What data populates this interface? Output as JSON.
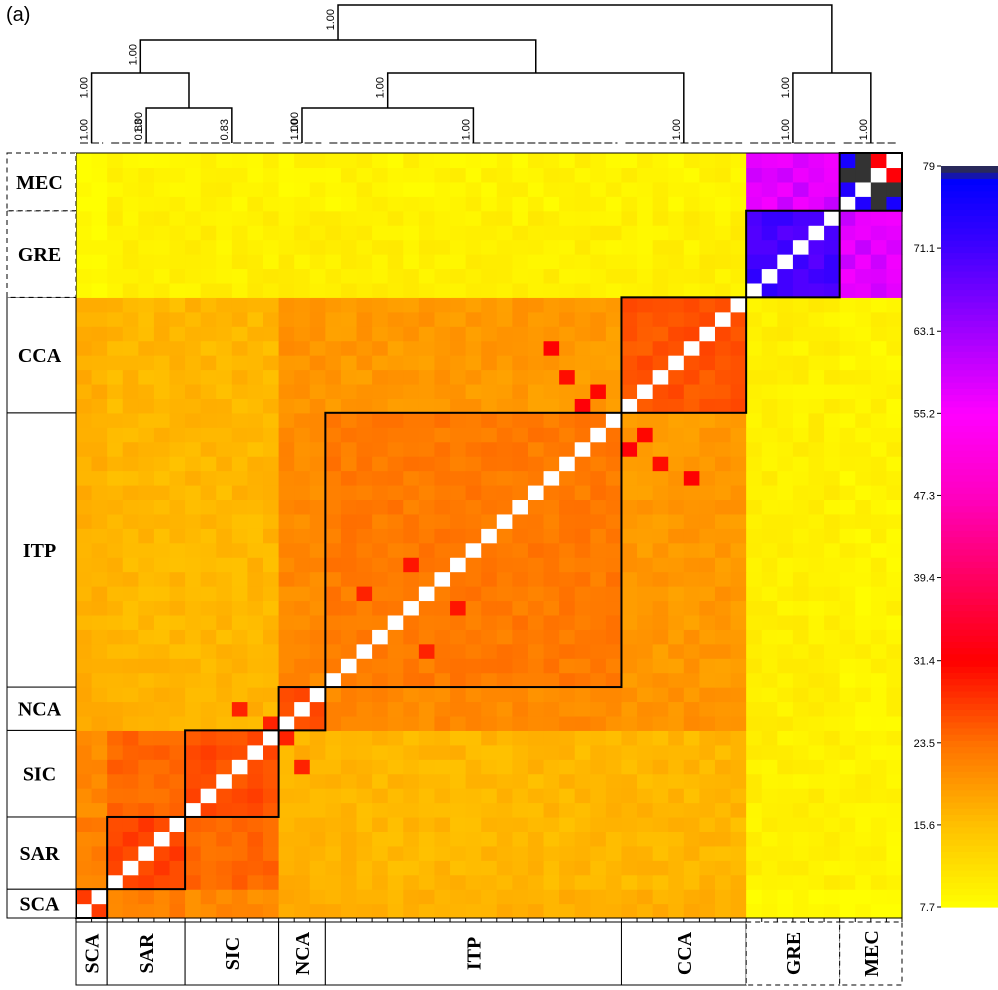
{
  "panel_label": "(a)",
  "chart_data": {
    "type": "heatmap",
    "groups": [
      {
        "name": "SCA",
        "size": 2,
        "border": "solid",
        "within": 28,
        "gre": 8.5,
        "mec": 8.0
      },
      {
        "name": "SAR",
        "size": 5,
        "border": "solid",
        "within": 27,
        "gre": 9.5,
        "mec": 9.0
      },
      {
        "name": "SIC",
        "size": 6,
        "border": "solid",
        "within": 26,
        "gre": 9.5,
        "mec": 9.0
      },
      {
        "name": "NCA",
        "size": 3,
        "border": "solid",
        "within": 26.5,
        "gre": 9.5,
        "mec": 9.0
      },
      {
        "name": "ITP",
        "size": 19,
        "border": "solid",
        "within": 22.5,
        "gre": 9.5,
        "mec": 9.0
      },
      {
        "name": "CCA",
        "size": 8,
        "border": "solid",
        "within": 25.5,
        "gre": 9.5,
        "mec": 9.0
      },
      {
        "name": "GRE",
        "size": 6,
        "border": "dashed",
        "within": 71,
        "gre": 71,
        "mec": 58
      },
      {
        "name": "MEC",
        "size": 4,
        "border": "dashed",
        "within": 74.5,
        "gre": 58,
        "mec": 74.5
      }
    ],
    "between_groups": {
      "SCA-SAR": 22,
      "SCA-SIC": 21,
      "SCA-NCA": 18,
      "SCA-ITP": 17,
      "SCA-CCA": 17.5,
      "SAR-SIC": 24,
      "SAR-NCA": 17,
      "SAR-ITP": 16.5,
      "SAR-CCA": 16.5,
      "SIC-NCA": 17,
      "SIC-ITP": 16.5,
      "SIC-CCA": 16.5,
      "NCA-ITP": 21,
      "NCA-CCA": 20,
      "ITP-CCA": 19.5
    },
    "hot_cells": [
      {
        "row": 35,
        "col": 32,
        "value": 32
      },
      {
        "row": 36,
        "col": 33,
        "value": 31
      },
      {
        "row": 37,
        "col": 31,
        "value": 30.5
      },
      {
        "row": 39,
        "col": 30,
        "value": 31.5
      },
      {
        "row": 51,
        "col": 52,
        "value": 32
      },
      {
        "row": 50,
        "col": 51,
        "value": 31
      },
      {
        "row": 24,
        "col": 21,
        "value": 30
      },
      {
        "row": 14,
        "col": 10,
        "value": 29
      },
      {
        "row": 22,
        "col": 18,
        "value": 29
      },
      {
        "row": 12,
        "col": 13,
        "value": 29
      }
    ],
    "dark_cells": [
      {
        "row": 51,
        "col": 49
      },
      {
        "row": 52,
        "col": 50
      },
      {
        "row": 51,
        "col": 50
      }
    ],
    "colorbar": {
      "min": 7.7,
      "max": 79,
      "ticks": [
        "7.7",
        "15.6",
        "23.5",
        "31.4",
        "39.4",
        "47.3",
        "55.2",
        "63.1",
        "71.1",
        "79"
      ],
      "tick_values": [
        7.7,
        15.6,
        23.5,
        31.4,
        39.4,
        47.3,
        55.2,
        63.1,
        71.1,
        79
      ],
      "colors": [
        {
          "v": 7.7,
          "c": "#ffff00"
        },
        {
          "v": 15.6,
          "c": "#ffc000"
        },
        {
          "v": 23.5,
          "c": "#ff7000"
        },
        {
          "v": 31.4,
          "c": "#ff0000"
        },
        {
          "v": 39.4,
          "c": "#ff0060"
        },
        {
          "v": 47.3,
          "c": "#ff00c0"
        },
        {
          "v": 55.2,
          "c": "#ff00ff"
        },
        {
          "v": 63.1,
          "c": "#a000ff"
        },
        {
          "v": 71.1,
          "c": "#4000ff"
        },
        {
          "v": 77.5,
          "c": "#0000ff"
        },
        {
          "v": 79,
          "c": "#333333"
        }
      ]
    },
    "dendrogram": {
      "nodes": [
        {
          "id": "n_sca",
          "label": "1.00",
          "members": [
            "SCA"
          ]
        },
        {
          "id": "n_sar",
          "label": "0.83",
          "members": [
            "SAR"
          ]
        },
        {
          "id": "n_sic",
          "label": "0.83",
          "members": [
            "SIC"
          ]
        },
        {
          "id": "n_nca",
          "label": "1.00",
          "members": [
            "NCA"
          ]
        },
        {
          "id": "n_itp",
          "label": "1.00",
          "members": [
            "ITP"
          ]
        },
        {
          "id": "n_cca",
          "label": "1.00",
          "members": [
            "CCA"
          ]
        },
        {
          "id": "n_gre",
          "label": "1.00",
          "members": [
            "GRE"
          ]
        },
        {
          "id": "n_mec",
          "label": "1.00",
          "members": [
            "MEC"
          ]
        },
        {
          "id": "n_sar_sic",
          "label": "1.00",
          "children": [
            "n_sar",
            "n_sic"
          ]
        },
        {
          "id": "n_sca_sar_sic",
          "label": "1.00",
          "children": [
            "n_sca",
            "n_sar_sic"
          ]
        },
        {
          "id": "n_nca_itp",
          "label": "1.00",
          "children": [
            "n_nca",
            "n_itp"
          ]
        },
        {
          "id": "n_nca_itp_cca",
          "label": "1.00",
          "children": [
            "n_nca_itp",
            "n_cca"
          ]
        },
        {
          "id": "n_south",
          "label": "1.00",
          "children": [
            "n_sca_sar_sic",
            "n_nca_itp_cca"
          ]
        },
        {
          "id": "n_gre_mec",
          "label": "1.00",
          "children": [
            "n_gre",
            "n_mec"
          ]
        },
        {
          "id": "n_root",
          "label": "1.00",
          "children": [
            "n_south",
            "n_gre_mec"
          ]
        }
      ]
    }
  }
}
